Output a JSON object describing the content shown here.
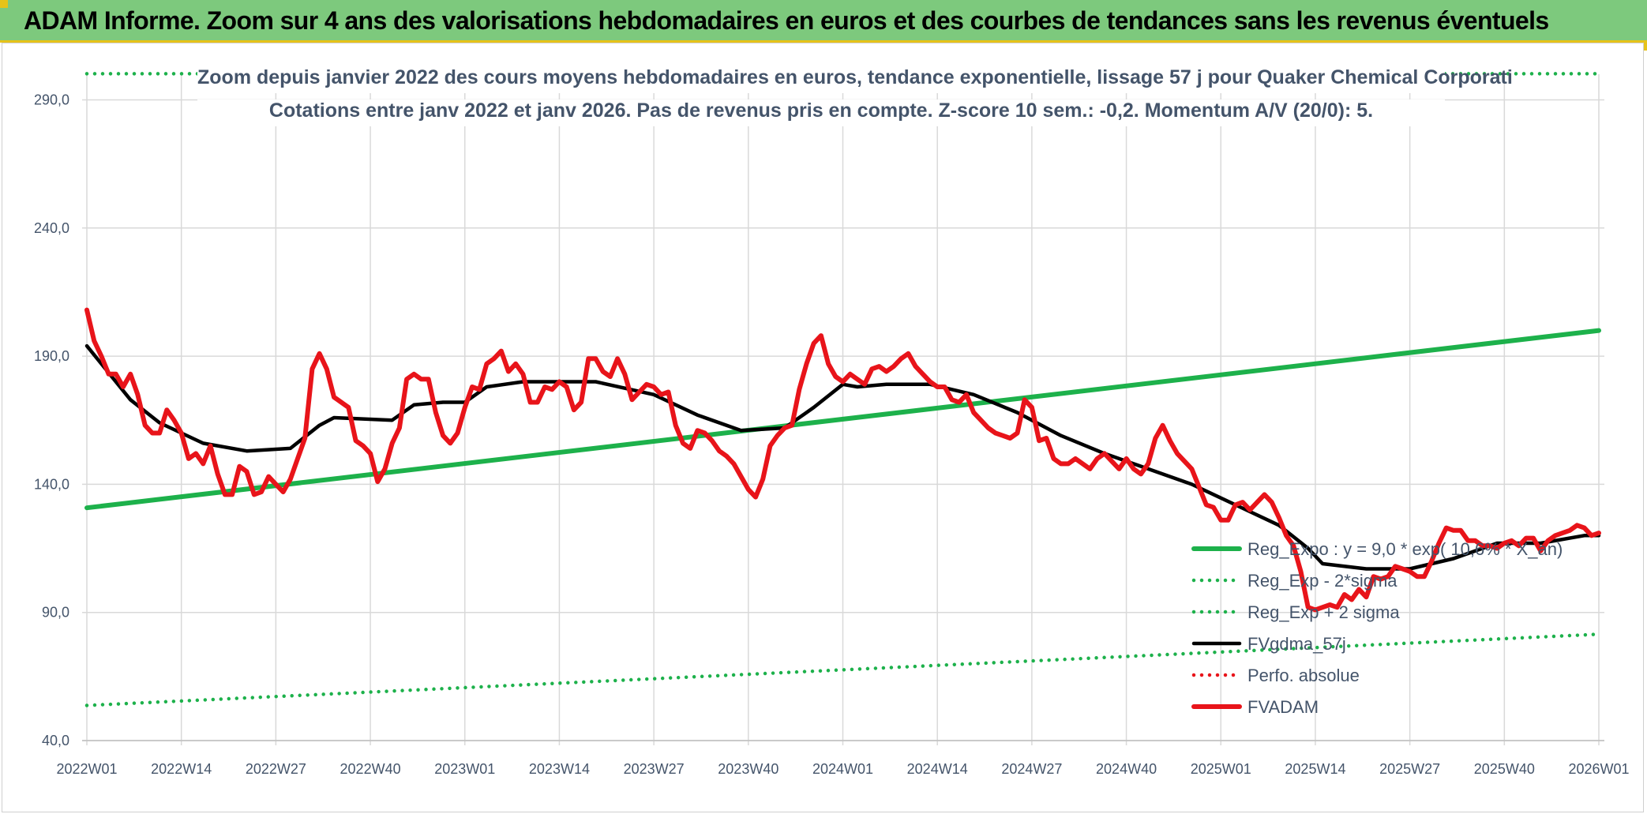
{
  "banner": {
    "title": "ADAM Informe. Zoom sur 4 ans des valorisations hebdomadaires en euros et des courbes de tendances sans les revenus éventuels"
  },
  "colors": {
    "banner_bg": "#7dc97d",
    "reg_expo": "#1db14b",
    "sigma_lines": "#1db14b",
    "fvgdma": "#000000",
    "perfo": "#e8141a",
    "fvadam": "#e8141a",
    "grid": "#d9d9d9",
    "text": "#44546a"
  },
  "chart_data": {
    "type": "line",
    "title": "Zoom depuis janvier 2022 des cours moyens hebdomadaires en euros, tendance exponentielle, lissage 57 j pour Quaker Chemical Corporati",
    "subtitle": "Cotations entre janv 2022 et janv 2026. Pas de revenus pris en compte. Z-score 10 sem.: -0,2. Momentum A/V (20/0): 5.",
    "xlabel": "",
    "ylabel": "",
    "ylim": [
      40,
      300
    ],
    "y_ticks": [
      "40,0",
      "90,0",
      "140,0",
      "190,0",
      "240,0",
      "290,0"
    ],
    "y_tick_values": [
      40,
      90,
      140,
      190,
      240,
      290
    ],
    "x_ticks": [
      "2022W01",
      "2022W14",
      "2022W27",
      "2022W40",
      "2023W01",
      "2023W14",
      "2023W27",
      "2023W40",
      "2024W01",
      "2024W14",
      "2024W27",
      "2024W40",
      "2025W01",
      "2025W14",
      "2025W27",
      "2025W40",
      "2026W01"
    ],
    "x_tick_weeks": [
      0,
      13,
      26,
      39,
      52,
      65,
      78,
      91,
      104,
      117,
      130,
      143,
      156,
      169,
      182,
      195,
      208
    ],
    "x_range_weeks": [
      0,
      208
    ],
    "grid": true,
    "legend_position": "right",
    "series": [
      {
        "name": "Reg_Expo : y = 9,0 * exp( 10,6% * X_an)",
        "style": "solid-thick",
        "color": "#1db14b",
        "points": [
          [
            0,
            130.8
          ],
          [
            208,
            200.0
          ]
        ]
      },
      {
        "name": "Reg_Exp - 2*sigma",
        "style": "dotted",
        "color": "#1db14b",
        "points": [
          [
            0,
            53.7
          ],
          [
            208,
            81.5
          ]
        ]
      },
      {
        "name": "Reg_Exp + 2 sigma",
        "style": "dotted",
        "color": "#1db14b",
        "points": [
          [
            0,
            300.2
          ],
          [
            208,
            300.2
          ]
        ]
      },
      {
        "name": "FVgdma_57j",
        "style": "solid",
        "color": "#000000",
        "points": [
          [
            0,
            194
          ],
          [
            6,
            173
          ],
          [
            10,
            164
          ],
          [
            16,
            156
          ],
          [
            22,
            153
          ],
          [
            28,
            154
          ],
          [
            32,
            163
          ],
          [
            34,
            166
          ],
          [
            42,
            165
          ],
          [
            45,
            171
          ],
          [
            49,
            172
          ],
          [
            52,
            172
          ],
          [
            55,
            178
          ],
          [
            60,
            180
          ],
          [
            70,
            180
          ],
          [
            78,
            175
          ],
          [
            84,
            167
          ],
          [
            90,
            161
          ],
          [
            96,
            162
          ],
          [
            100,
            170
          ],
          [
            104,
            179
          ],
          [
            106,
            178
          ],
          [
            110,
            179
          ],
          [
            116,
            179
          ],
          [
            122,
            175
          ],
          [
            128,
            168
          ],
          [
            134,
            159
          ],
          [
            140,
            152
          ],
          [
            146,
            146
          ],
          [
            152,
            140
          ],
          [
            158,
            132
          ],
          [
            164,
            124
          ],
          [
            168,
            115
          ],
          [
            170,
            109
          ],
          [
            176,
            107
          ],
          [
            182,
            107
          ],
          [
            188,
            111
          ],
          [
            194,
            117
          ],
          [
            200,
            117
          ],
          [
            206,
            120
          ],
          [
            208,
            120
          ]
        ]
      },
      {
        "name": "Perfo. absolue",
        "style": "dotted",
        "color": "#e8141a",
        "points": []
      },
      {
        "name": "FVADAM",
        "style": "solid-thick",
        "color": "#e8141a",
        "points": [
          [
            0,
            208
          ],
          [
            1,
            196
          ],
          [
            2,
            190
          ],
          [
            3,
            183
          ],
          [
            4,
            183
          ],
          [
            5,
            178
          ],
          [
            6,
            183
          ],
          [
            7,
            175
          ],
          [
            8,
            163
          ],
          [
            9,
            160
          ],
          [
            10,
            160
          ],
          [
            11,
            169
          ],
          [
            12,
            165
          ],
          [
            13,
            160
          ],
          [
            14,
            150
          ],
          [
            15,
            152
          ],
          [
            16,
            148
          ],
          [
            17,
            155
          ],
          [
            18,
            144
          ],
          [
            19,
            136
          ],
          [
            20,
            136
          ],
          [
            21,
            147
          ],
          [
            22,
            145
          ],
          [
            23,
            136
          ],
          [
            24,
            137
          ],
          [
            25,
            143
          ],
          [
            26,
            140
          ],
          [
            27,
            137
          ],
          [
            28,
            142
          ],
          [
            29,
            150
          ],
          [
            30,
            158
          ],
          [
            31,
            185
          ],
          [
            32,
            191
          ],
          [
            33,
            185
          ],
          [
            34,
            174
          ],
          [
            35,
            172
          ],
          [
            36,
            170
          ],
          [
            37,
            157
          ],
          [
            38,
            155
          ],
          [
            39,
            152
          ],
          [
            40,
            141
          ],
          [
            41,
            146
          ],
          [
            42,
            156
          ],
          [
            43,
            162
          ],
          [
            44,
            181
          ],
          [
            45,
            183
          ],
          [
            46,
            181
          ],
          [
            47,
            181
          ],
          [
            48,
            168
          ],
          [
            49,
            159
          ],
          [
            50,
            156
          ],
          [
            51,
            160
          ],
          [
            52,
            170
          ],
          [
            53,
            178
          ],
          [
            54,
            177
          ],
          [
            55,
            187
          ],
          [
            56,
            189
          ],
          [
            57,
            192
          ],
          [
            58,
            184
          ],
          [
            59,
            187
          ],
          [
            60,
            183
          ],
          [
            61,
            172
          ],
          [
            62,
            172
          ],
          [
            63,
            178
          ],
          [
            64,
            177
          ],
          [
            65,
            180
          ],
          [
            66,
            178
          ],
          [
            67,
            169
          ],
          [
            68,
            172
          ],
          [
            69,
            189
          ],
          [
            70,
            189
          ],
          [
            71,
            184
          ],
          [
            72,
            182
          ],
          [
            73,
            189
          ],
          [
            74,
            183
          ],
          [
            75,
            173
          ],
          [
            76,
            176
          ],
          [
            77,
            179
          ],
          [
            78,
            178
          ],
          [
            79,
            175
          ],
          [
            80,
            176
          ],
          [
            81,
            163
          ],
          [
            82,
            156
          ],
          [
            83,
            154
          ],
          [
            84,
            161
          ],
          [
            85,
            160
          ],
          [
            86,
            157
          ],
          [
            87,
            153
          ],
          [
            88,
            151
          ],
          [
            89,
            148
          ],
          [
            90,
            143
          ],
          [
            91,
            138
          ],
          [
            92,
            135
          ],
          [
            93,
            142
          ],
          [
            94,
            155
          ],
          [
            95,
            159
          ],
          [
            96,
            162
          ],
          [
            97,
            163
          ],
          [
            98,
            177
          ],
          [
            99,
            187
          ],
          [
            100,
            195
          ],
          [
            101,
            198
          ],
          [
            102,
            187
          ],
          [
            103,
            182
          ],
          [
            104,
            180
          ],
          [
            105,
            183
          ],
          [
            106,
            181
          ],
          [
            107,
            179
          ],
          [
            108,
            185
          ],
          [
            109,
            186
          ],
          [
            110,
            184
          ],
          [
            111,
            186
          ],
          [
            112,
            189
          ],
          [
            113,
            191
          ],
          [
            114,
            186
          ],
          [
            115,
            183
          ],
          [
            116,
            180
          ],
          [
            117,
            178
          ],
          [
            118,
            178
          ],
          [
            119,
            173
          ],
          [
            120,
            172
          ],
          [
            121,
            175
          ],
          [
            122,
            168
          ],
          [
            123,
            165
          ],
          [
            124,
            162
          ],
          [
            125,
            160
          ],
          [
            126,
            159
          ],
          [
            127,
            158
          ],
          [
            128,
            160
          ],
          [
            129,
            173
          ],
          [
            130,
            170
          ],
          [
            131,
            157
          ],
          [
            132,
            158
          ],
          [
            133,
            150
          ],
          [
            134,
            148
          ],
          [
            135,
            148
          ],
          [
            136,
            150
          ],
          [
            137,
            148
          ],
          [
            138,
            146
          ],
          [
            139,
            150
          ],
          [
            140,
            152
          ],
          [
            141,
            149
          ],
          [
            142,
            146
          ],
          [
            143,
            150
          ],
          [
            144,
            146
          ],
          [
            145,
            144
          ],
          [
            146,
            148
          ],
          [
            147,
            158
          ],
          [
            148,
            163
          ],
          [
            149,
            157
          ],
          [
            150,
            152
          ],
          [
            151,
            149
          ],
          [
            152,
            146
          ],
          [
            153,
            139
          ],
          [
            154,
            132
          ],
          [
            155,
            131
          ],
          [
            156,
            126
          ],
          [
            157,
            126
          ],
          [
            158,
            132
          ],
          [
            159,
            133
          ],
          [
            160,
            130
          ],
          [
            161,
            133
          ],
          [
            162,
            136
          ],
          [
            163,
            133
          ],
          [
            164,
            127
          ],
          [
            165,
            120
          ],
          [
            166,
            116
          ],
          [
            167,
            106
          ],
          [
            168,
            92
          ],
          [
            169,
            91
          ],
          [
            170,
            92
          ],
          [
            171,
            93
          ],
          [
            172,
            92
          ],
          [
            173,
            97
          ],
          [
            174,
            95
          ],
          [
            175,
            99
          ],
          [
            176,
            96
          ],
          [
            177,
            104
          ],
          [
            178,
            103
          ],
          [
            179,
            104
          ],
          [
            180,
            108
          ],
          [
            181,
            107
          ],
          [
            182,
            106
          ],
          [
            183,
            104
          ],
          [
            184,
            104
          ],
          [
            185,
            110
          ],
          [
            186,
            117
          ],
          [
            187,
            123
          ],
          [
            188,
            122
          ],
          [
            189,
            122
          ],
          [
            190,
            118
          ],
          [
            191,
            118
          ],
          [
            192,
            116
          ],
          [
            193,
            116
          ],
          [
            194,
            115
          ],
          [
            195,
            117
          ],
          [
            196,
            118
          ],
          [
            197,
            116
          ],
          [
            198,
            119
          ],
          [
            199,
            119
          ],
          [
            200,
            114
          ],
          [
            201,
            118
          ],
          [
            202,
            120
          ],
          [
            203,
            121
          ],
          [
            204,
            122
          ],
          [
            205,
            124
          ],
          [
            206,
            123
          ],
          [
            207,
            120
          ],
          [
            208,
            121
          ]
        ]
      }
    ]
  }
}
